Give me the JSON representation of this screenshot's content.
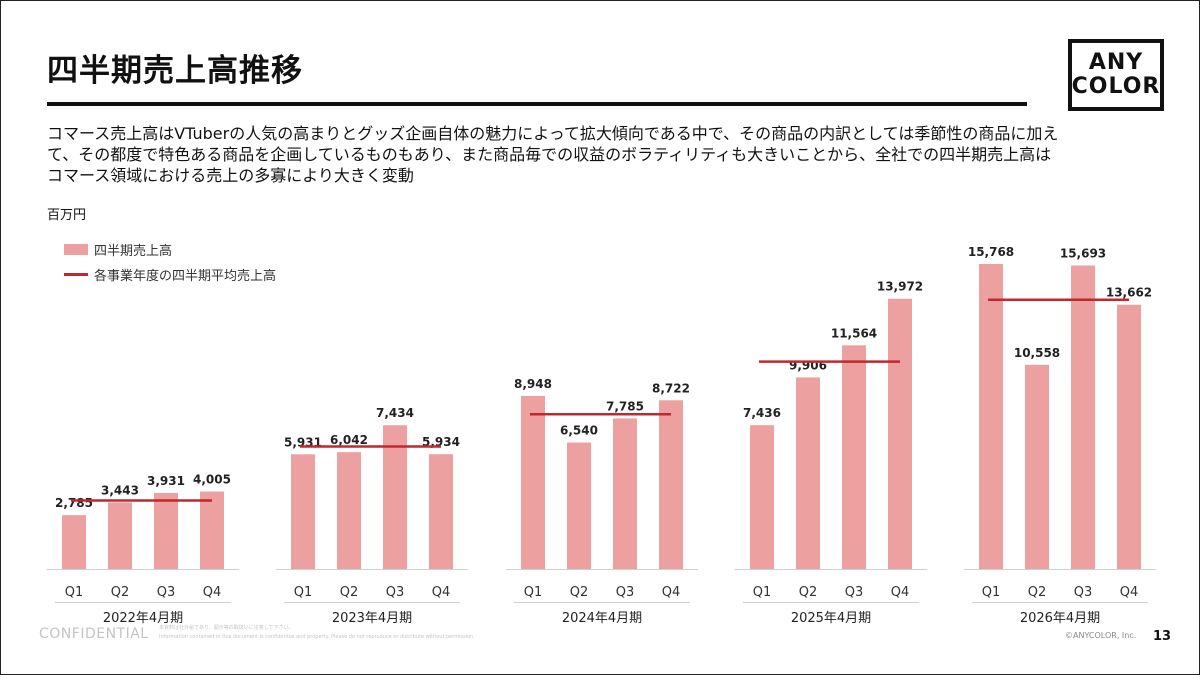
{
  "header": {
    "title": "四半期売上高推移",
    "logo_line1": "ANY",
    "logo_line2": "COLOR"
  },
  "description": {
    "line1": "コマース売上高はVTuberの人気の高まりとグッズ企画自体の魅力によって拡大傾向である中で、その商品の内訳としては季節性の商品に加え",
    "line2": "て、その都度で特色ある商品を企画しているものもあり、また商品毎での収益のボラティリティも大きいことから、全社での四半期売上高は",
    "line3": "コマース領域における売上の多寡により大きく変動"
  },
  "footer": {
    "confidential": "CONFIDENTIAL",
    "note_line1": "本資料は社外秘であり、開示等の取扱いに注意して下さい。",
    "note_line2": "Information contained in this document is confidential and property. Please do not reproduce or distribute without permission.",
    "copyright": "©ANYCOLOR, Inc.",
    "page_number": "13"
  },
  "chart_data": {
    "type": "bar",
    "unit_label": "百万円",
    "legend": {
      "bar_label": "四半期売上高",
      "line_label": "各事業年度の四半期平均売上高"
    },
    "ylim": [
      0,
      16500
    ],
    "grid": false,
    "legend_position": "top-left",
    "colors": {
      "bar": "#EDA0A0",
      "average_line": "#C0282E",
      "axis": "#D0D0D0"
    },
    "groups": [
      {
        "label": "2022年4月期",
        "quarters": [
          "Q1",
          "Q2",
          "Q3",
          "Q4"
        ],
        "values": [
          2785,
          3443,
          3931,
          4005
        ],
        "value_labels": [
          "2,785",
          "3,443",
          "3,931",
          "4,005"
        ],
        "average": 3541
      },
      {
        "label": "2023年4月期",
        "quarters": [
          "Q1",
          "Q2",
          "Q3",
          "Q4"
        ],
        "values": [
          5931,
          6042,
          7434,
          5934
        ],
        "value_labels": [
          "5,931",
          "6,042",
          "7,434",
          "5,934"
        ],
        "average": 6335
      },
      {
        "label": "2024年4月期",
        "quarters": [
          "Q1",
          "Q2",
          "Q3",
          "Q4"
        ],
        "values": [
          8948,
          6540,
          7785,
          8722
        ],
        "value_labels": [
          "8,948",
          "6,540",
          "7,785",
          "8,722"
        ],
        "average": 7999
      },
      {
        "label": "2025年4月期",
        "quarters": [
          "Q1",
          "Q2",
          "Q3",
          "Q4"
        ],
        "values": [
          7436,
          9906,
          11564,
          13972
        ],
        "value_labels": [
          "7,436",
          "9,906",
          "11,564",
          "13,972"
        ],
        "average": 10720
      },
      {
        "label": "2026年4月期",
        "quarters": [
          "Q1",
          "Q2",
          "Q3",
          "Q4"
        ],
        "values": [
          15768,
          10558,
          15693,
          13662
        ],
        "value_labels": [
          "15,768",
          "10,558",
          "15,693",
          "13,662"
        ],
        "average": 13920
      }
    ]
  }
}
